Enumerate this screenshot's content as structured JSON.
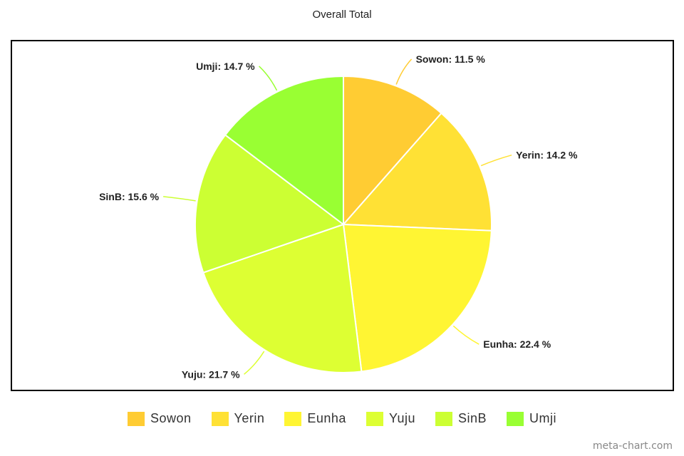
{
  "chart_data": {
    "type": "pie",
    "title": "Overall Total",
    "slices": [
      {
        "name": "Sowon",
        "value": 11.5,
        "label": "Sowon: 11.5 %",
        "color": "#ffcc33"
      },
      {
        "name": "Yerin",
        "value": 14.2,
        "label": "Yerin: 14.2 %",
        "color": "#ffe135"
      },
      {
        "name": "Eunha",
        "value": 22.4,
        "label": "Eunha: 22.4 %",
        "color": "#fff533"
      },
      {
        "name": "Yuju",
        "value": 21.7,
        "label": "Yuju: 21.7 %",
        "color": "#ddff33"
      },
      {
        "name": "SinB",
        "value": 15.6,
        "label": "SinB: 15.6 %",
        "color": "#ccff33"
      },
      {
        "name": "Umji",
        "value": 14.7,
        "label": "Umji: 14.7 %",
        "color": "#99ff33"
      }
    ],
    "legend": {
      "position": "bottom",
      "items": [
        "Sowon",
        "Yerin",
        "Eunha",
        "Yuju",
        "SinB",
        "Umji"
      ]
    }
  },
  "watermark": "meta-chart.com"
}
